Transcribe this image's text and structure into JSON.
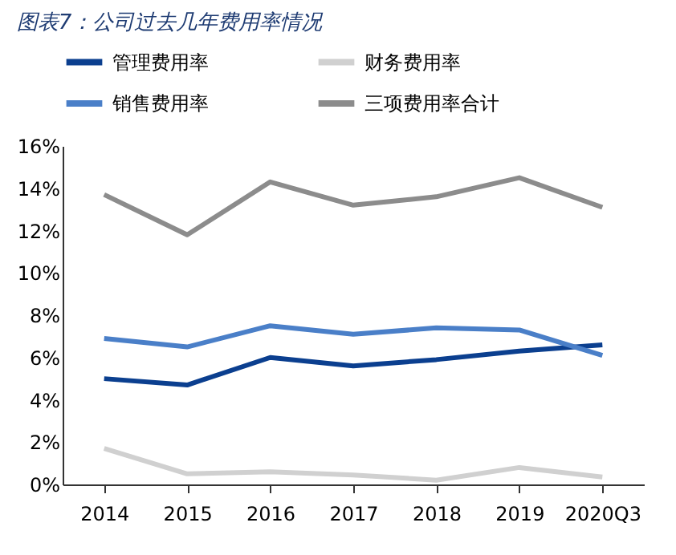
{
  "chart_data": {
    "type": "line",
    "title": "图表7：公司过去几年费用率情况",
    "categories": [
      "2014",
      "2015",
      "2016",
      "2017",
      "2018",
      "2019",
      "2020Q3"
    ],
    "series": [
      {
        "name": "管理费用率",
        "color": "#0b3f8f",
        "values": [
          5.0,
          4.7,
          6.0,
          5.6,
          5.9,
          6.3,
          6.6
        ]
      },
      {
        "name": "财务费用率",
        "color": "#d0d0d0",
        "values": [
          1.7,
          0.5,
          0.6,
          0.45,
          0.2,
          0.8,
          0.35
        ]
      },
      {
        "name": "销售费用率",
        "color": "#4a7fc8",
        "values": [
          6.9,
          6.5,
          7.5,
          7.1,
          7.4,
          7.3,
          6.1
        ]
      },
      {
        "name": "三项费用率合计",
        "color": "#8c8c8c",
        "values": [
          13.7,
          11.8,
          14.3,
          13.2,
          13.6,
          14.5,
          13.1
        ]
      }
    ],
    "ylim": [
      0,
      16
    ],
    "yticks": [
      {
        "value": 0,
        "label": "0%"
      },
      {
        "value": 2,
        "label": "2%"
      },
      {
        "value": 4,
        "label": "4%"
      },
      {
        "value": 6,
        "label": "6%"
      },
      {
        "value": 8,
        "label": "8%"
      },
      {
        "value": 10,
        "label": "10%"
      },
      {
        "value": 12,
        "label": "12%"
      },
      {
        "value": 14,
        "label": "14%"
      },
      {
        "value": 16,
        "label": "16%"
      }
    ],
    "grid": false,
    "legend": "top",
    "marker": "none",
    "line_style": "solid"
  }
}
